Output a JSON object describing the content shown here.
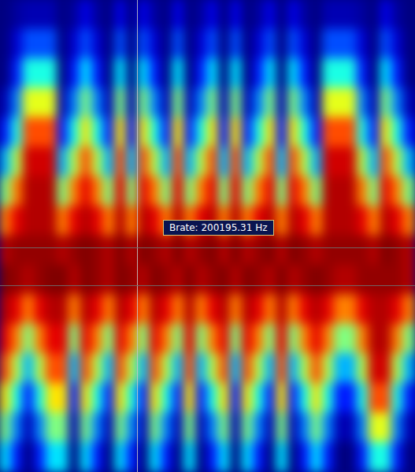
{
  "chart_data": {
    "type": "heatmap",
    "annotation": "Brate: 200195.31 Hz",
    "tick_labels": false,
    "cells": [
      [
        0,
        3,
        5,
        5,
        5,
        0,
        3,
        10,
        3,
        0,
        10,
        0,
        10,
        3,
        0,
        10,
        0,
        3,
        10,
        0,
        10,
        0,
        3,
        10,
        0,
        10,
        3,
        0,
        5,
        5,
        5,
        3,
        0,
        10,
        3,
        0
      ],
      [
        0,
        8,
        20,
        20,
        20,
        0,
        8,
        20,
        8,
        0,
        20,
        0,
        20,
        8,
        0,
        20,
        0,
        8,
        20,
        0,
        20,
        0,
        8,
        20,
        0,
        20,
        8,
        0,
        20,
        20,
        20,
        8,
        0,
        20,
        8,
        0
      ],
      [
        0,
        15,
        40,
        40,
        40,
        0,
        15,
        35,
        15,
        0,
        35,
        0,
        35,
        15,
        0,
        35,
        0,
        15,
        35,
        0,
        35,
        0,
        15,
        35,
        0,
        35,
        15,
        0,
        40,
        40,
        40,
        15,
        0,
        35,
        15,
        0
      ],
      [
        5,
        25,
        60,
        60,
        60,
        5,
        25,
        50,
        25,
        5,
        50,
        5,
        50,
        25,
        5,
        50,
        5,
        25,
        50,
        5,
        50,
        5,
        25,
        50,
        5,
        50,
        25,
        5,
        60,
        60,
        60,
        25,
        5,
        50,
        25,
        5
      ],
      [
        15,
        40,
        80,
        80,
        80,
        15,
        40,
        65,
        40,
        15,
        65,
        15,
        65,
        40,
        15,
        65,
        15,
        40,
        65,
        15,
        65,
        15,
        40,
        65,
        15,
        65,
        40,
        15,
        80,
        80,
        80,
        40,
        15,
        65,
        40,
        15
      ],
      [
        30,
        55,
        92,
        92,
        92,
        30,
        55,
        80,
        55,
        30,
        80,
        30,
        80,
        55,
        30,
        80,
        30,
        55,
        80,
        30,
        80,
        30,
        55,
        80,
        30,
        80,
        55,
        30,
        92,
        92,
        92,
        55,
        30,
        80,
        55,
        30
      ],
      [
        50,
        75,
        95,
        95,
        95,
        50,
        75,
        90,
        75,
        50,
        90,
        50,
        90,
        75,
        50,
        90,
        50,
        75,
        90,
        50,
        90,
        50,
        75,
        90,
        50,
        90,
        75,
        50,
        95,
        95,
        95,
        75,
        50,
        90,
        75,
        50
      ],
      [
        75,
        90,
        95,
        95,
        95,
        75,
        90,
        95,
        90,
        75,
        95,
        75,
        95,
        90,
        75,
        95,
        75,
        90,
        95,
        75,
        95,
        75,
        90,
        95,
        75,
        95,
        90,
        75,
        95,
        95,
        95,
        90,
        75,
        95,
        90,
        75
      ],
      [
        95,
        98,
        98,
        98,
        98,
        95,
        98,
        100,
        98,
        95,
        100,
        95,
        100,
        98,
        95,
        100,
        95,
        98,
        100,
        95,
        100,
        95,
        98,
        100,
        95,
        100,
        98,
        95,
        98,
        98,
        98,
        98,
        95,
        100,
        98,
        95
      ],
      [
        100,
        98,
        95,
        98,
        100,
        100,
        95,
        100,
        98,
        95,
        100,
        98,
        95,
        100,
        98,
        95,
        100,
        95,
        98,
        100,
        95,
        100,
        98,
        95,
        100,
        95,
        98,
        100,
        98,
        95,
        95,
        98,
        98,
        98,
        98,
        95
      ],
      [
        95,
        90,
        75,
        90,
        95,
        95,
        75,
        95,
        90,
        75,
        95,
        90,
        75,
        95,
        90,
        75,
        95,
        75,
        90,
        95,
        75,
        95,
        90,
        75,
        95,
        75,
        90,
        95,
        90,
        75,
        75,
        90,
        95,
        95,
        90,
        75
      ],
      [
        90,
        75,
        50,
        75,
        90,
        90,
        50,
        90,
        75,
        50,
        90,
        75,
        50,
        90,
        75,
        50,
        90,
        50,
        75,
        90,
        50,
        90,
        75,
        50,
        90,
        50,
        75,
        90,
        75,
        50,
        50,
        75,
        95,
        95,
        75,
        50
      ],
      [
        80,
        55,
        30,
        55,
        80,
        80,
        30,
        80,
        55,
        30,
        80,
        55,
        30,
        80,
        55,
        30,
        80,
        30,
        55,
        80,
        30,
        80,
        55,
        30,
        80,
        30,
        55,
        80,
        55,
        30,
        30,
        55,
        92,
        92,
        55,
        30
      ],
      [
        65,
        40,
        15,
        40,
        65,
        65,
        15,
        65,
        40,
        15,
        65,
        40,
        15,
        65,
        40,
        15,
        65,
        15,
        40,
        65,
        15,
        65,
        40,
        15,
        65,
        15,
        40,
        65,
        40,
        15,
        15,
        40,
        80,
        80,
        40,
        15
      ],
      [
        50,
        25,
        5,
        25,
        50,
        50,
        5,
        50,
        25,
        5,
        50,
        25,
        5,
        50,
        25,
        5,
        50,
        5,
        25,
        50,
        5,
        50,
        25,
        5,
        50,
        5,
        25,
        50,
        25,
        5,
        5,
        25,
        60,
        60,
        25,
        5
      ],
      [
        35,
        15,
        0,
        15,
        35,
        35,
        0,
        35,
        15,
        0,
        35,
        15,
        0,
        35,
        15,
        0,
        35,
        0,
        15,
        35,
        0,
        35,
        15,
        0,
        35,
        0,
        15,
        35,
        15,
        0,
        0,
        15,
        40,
        40,
        15,
        0
      ]
    ]
  }
}
